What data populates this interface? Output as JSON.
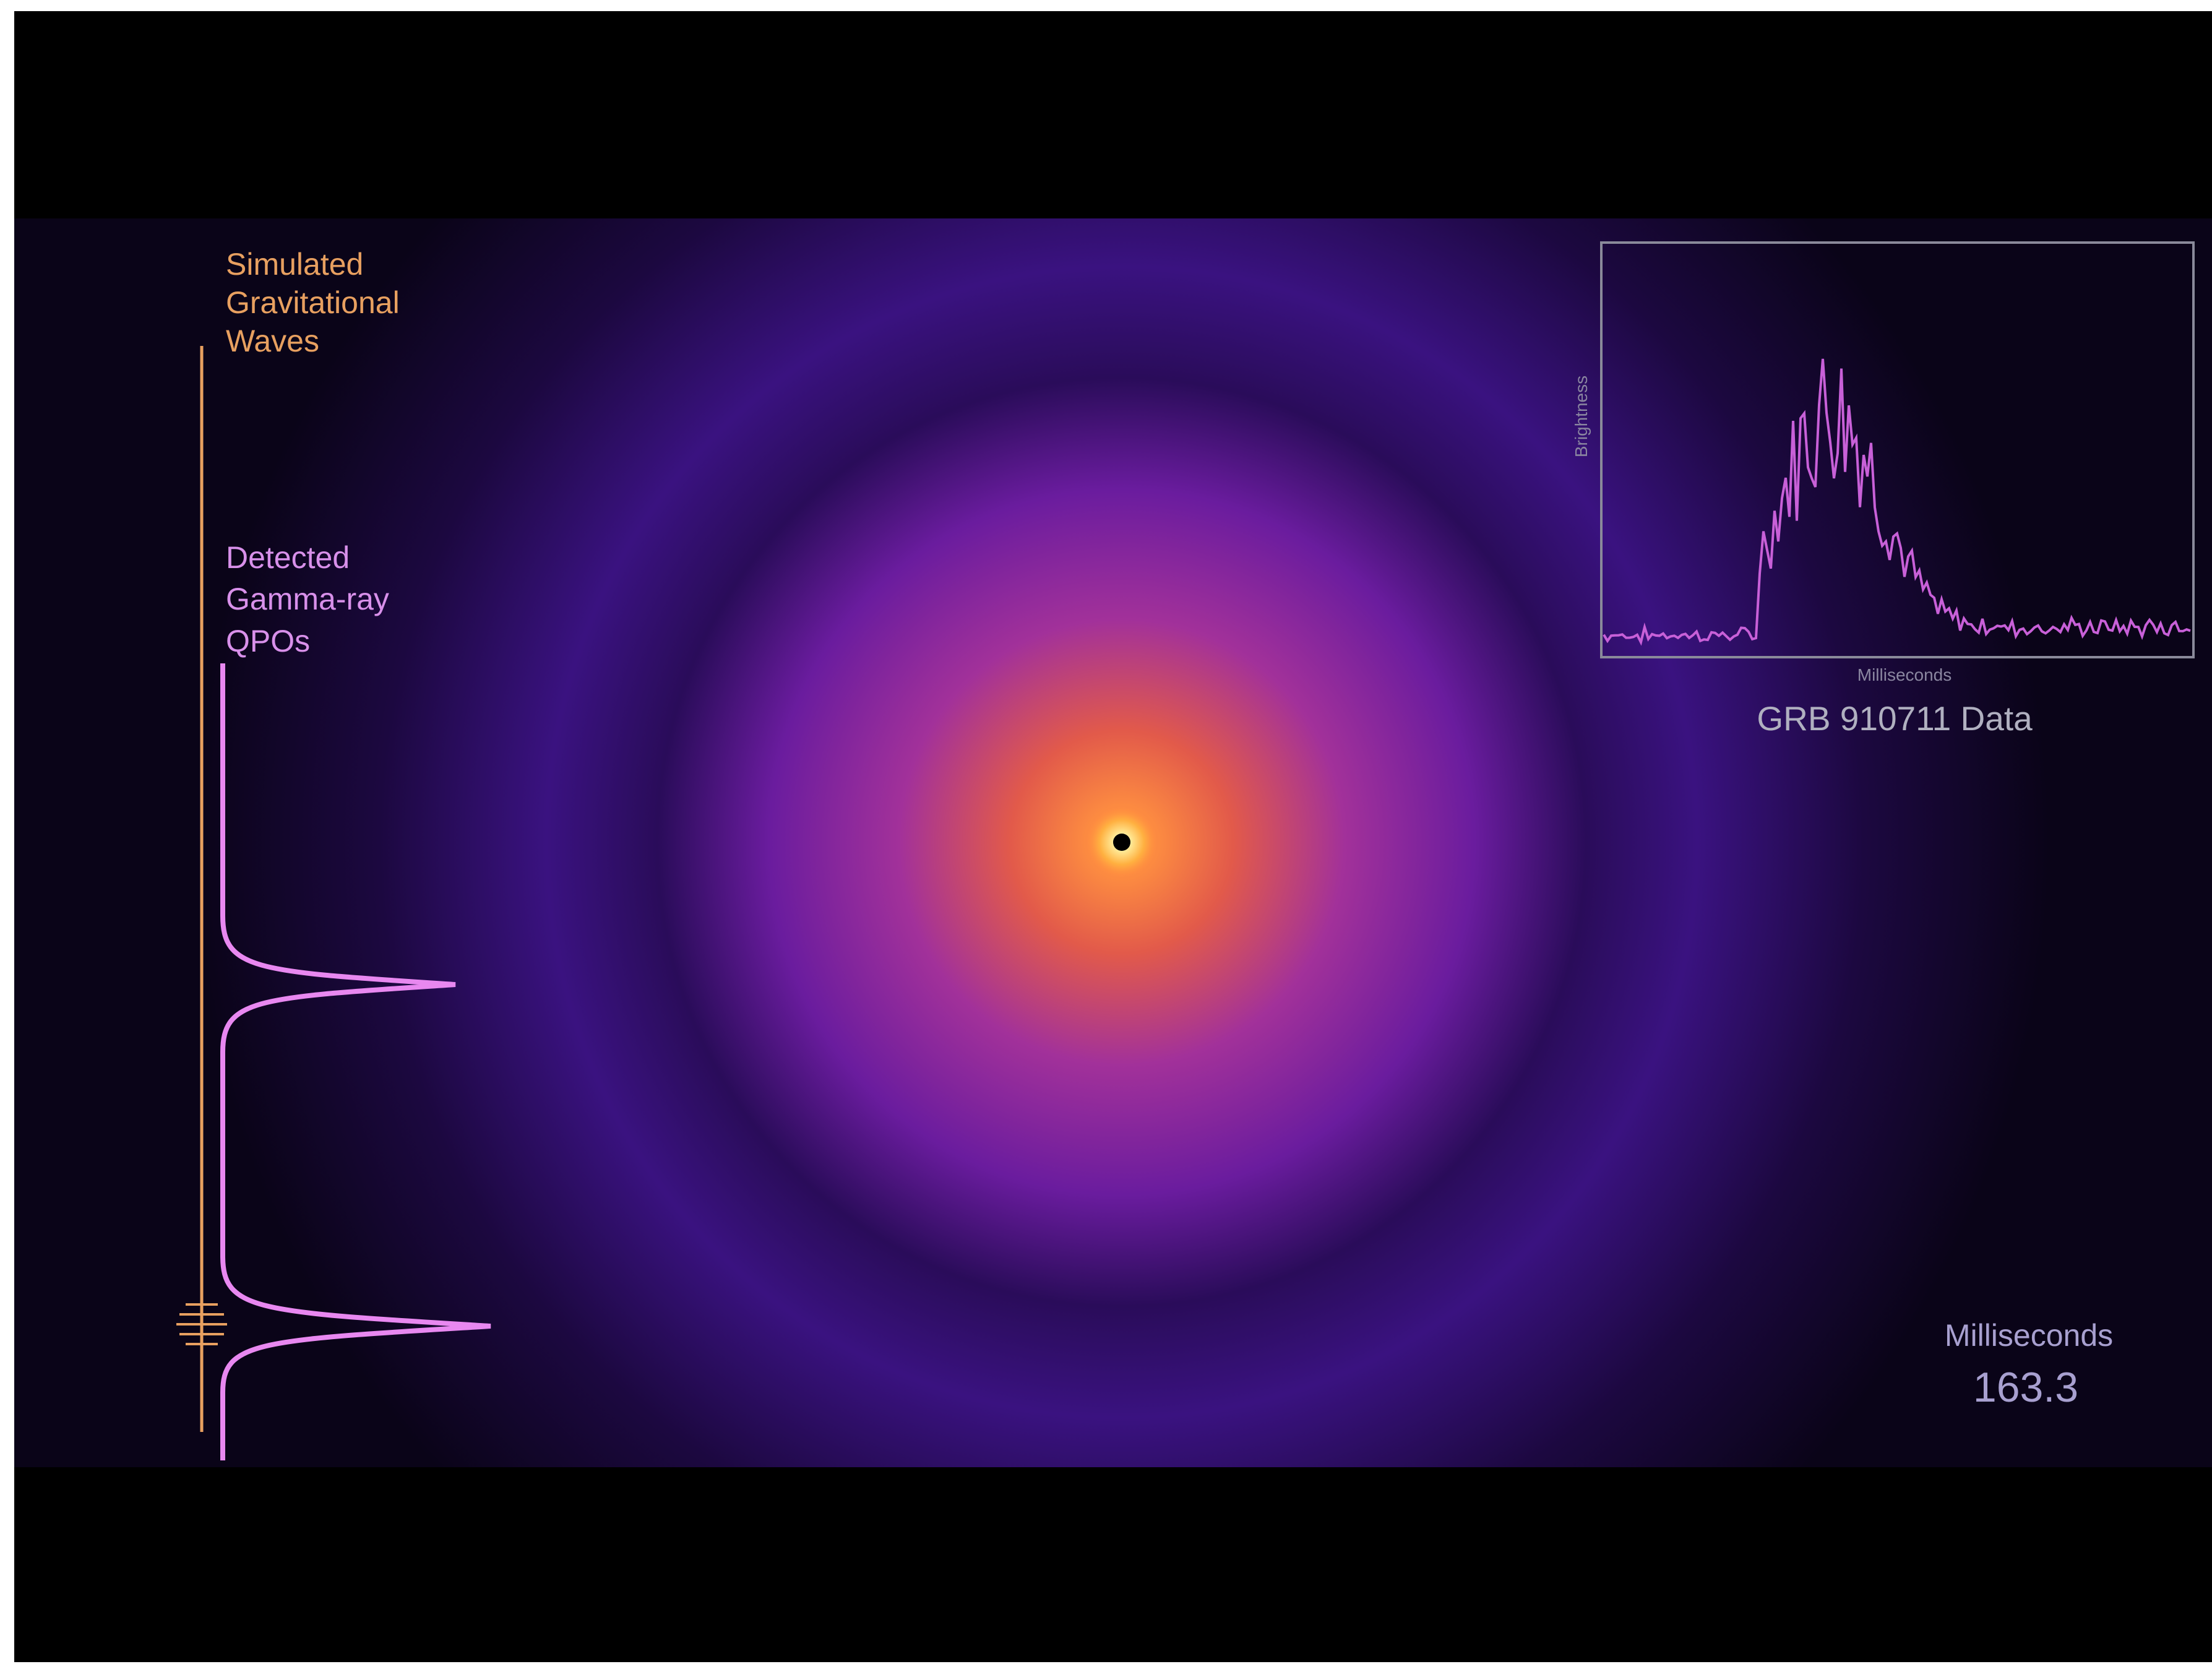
{
  "left_panel": {
    "gravitational_label": [
      "Simulated",
      "Gravitational",
      "Waves"
    ],
    "gamma_label": [
      "Detected",
      "Gamma-ray",
      "QPOs"
    ]
  },
  "inset": {
    "y_axis_label": "Brightness",
    "x_axis_label": "Milliseconds",
    "caption": "GRB 910711 Data"
  },
  "timer": {
    "label": "Milliseconds",
    "value": "163.3"
  }
}
